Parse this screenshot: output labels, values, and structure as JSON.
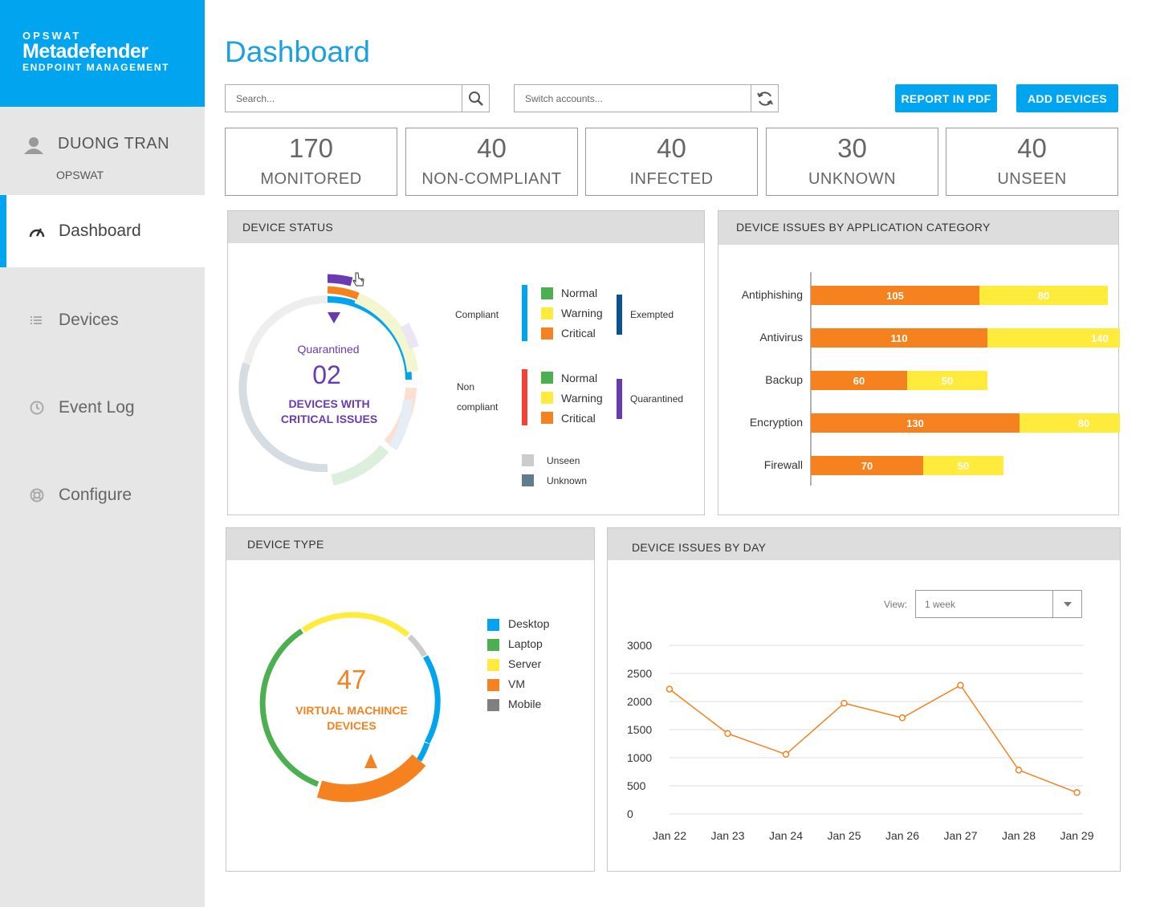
{
  "brand": {
    "line1": "OPSWAT",
    "line2": "Metadefender",
    "line3": "ENDPOINT MANAGEMENT",
    "color": "#00a4ef"
  },
  "user": {
    "name": "DUONG TRAN",
    "org": "OPSWAT"
  },
  "nav": [
    {
      "label": "Dashboard",
      "icon": "gauge-icon",
      "active": true
    },
    {
      "label": "Devices",
      "icon": "list-icon",
      "active": false
    },
    {
      "label": "Event Log",
      "icon": "clock-icon",
      "active": false
    },
    {
      "label": "Configure",
      "icon": "lifebuoy-icon",
      "active": false
    }
  ],
  "header": {
    "title": "Dashboard",
    "search_placeholder": "Search...",
    "accounts_placeholder": "Switch accounts...",
    "report_button": "REPORT IN PDF",
    "add_button": "ADD DEVICES"
  },
  "stats": [
    {
      "value": "170",
      "label": "MONITORED"
    },
    {
      "value": "40",
      "label": "NON-COMPLIANT"
    },
    {
      "value": "40",
      "label": "INFECTED"
    },
    {
      "value": "30",
      "label": "UNKNOWN"
    },
    {
      "value": "40",
      "label": "UNSEEN"
    }
  ],
  "device_status": {
    "title": "DEVICE STATUS",
    "center_caption": "Quarantined",
    "center_value": "02",
    "center_line1": "DEVICES WITH",
    "center_line2": "CRITICAL ISSUES",
    "compliant_label": "Compliant",
    "non_line1": "Non",
    "non_line2": "compliant",
    "exempted_label": "Exempted",
    "quarantined_label": "Quarantined",
    "compliant_items": [
      "Normal",
      "Warning",
      "Critical"
    ],
    "non_items": [
      "Normal",
      "Warning",
      "Critical"
    ],
    "unseen_label": "Unseen",
    "unknown_label": "Unknown",
    "colors": {
      "normal": "#4caf50",
      "warning": "#ffeb3b",
      "critical": "#f5821f",
      "compliant": "#00a4ef",
      "non": "#f44336",
      "exempted": "#0b5394",
      "quarantined": "#6a3ab2",
      "unseen": "#cccccc",
      "unknown": "#607d8b"
    }
  },
  "app_issues": {
    "title": "DEVICE ISSUES BY APPLICATION CATEGORY",
    "chart_data": {
      "type": "bar",
      "orientation": "horizontal",
      "stacked": true,
      "categories": [
        "Antiphishing",
        "Antivirus",
        "Backup",
        "Encryption",
        "Firewall"
      ],
      "series": [
        {
          "values": [
            105,
            110,
            60,
            130,
            70
          ],
          "color": "#f5821f"
        },
        {
          "values": [
            80,
            140,
            50,
            80,
            50
          ],
          "color": "#ffeb3b"
        }
      ]
    }
  },
  "device_type": {
    "title": "DEVICE TYPE",
    "center_value": "47",
    "center_line1": "VIRTUAL MACHINCE",
    "center_line2": "DEVICES",
    "legend": [
      {
        "label": "Desktop",
        "color": "#00a4ef"
      },
      {
        "label": "Laptop",
        "color": "#4caf50"
      },
      {
        "label": "Server",
        "color": "#ffeb3b"
      },
      {
        "label": "VM",
        "color": "#f5821f"
      },
      {
        "label": "Mobile",
        "color": "#808080"
      }
    ]
  },
  "issues_by_day": {
    "title": "DEVICE ISSUES BY DAY",
    "view_label": "View:",
    "view_value": "1 week",
    "chart_data": {
      "type": "line",
      "x": [
        "Jan 22",
        "Jan 23",
        "Jan 24",
        "Jan 25",
        "Jan 26",
        "Jan 27",
        "Jan 28",
        "Jan 29"
      ],
      "series": [
        {
          "values": [
            2220,
            1430,
            1060,
            1970,
            1710,
            2290,
            780,
            380
          ],
          "color": "#f5821f"
        }
      ],
      "yticks": [
        "3000",
        "2500",
        "2000",
        "1500",
        "1000",
        "500",
        "0"
      ],
      "ylim": [
        0,
        3000
      ],
      "grid": true
    }
  }
}
